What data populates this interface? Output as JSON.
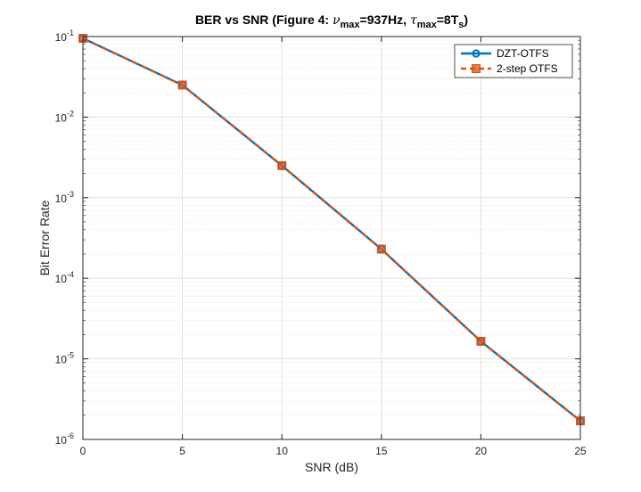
{
  "chart_data": {
    "type": "line",
    "title_parts": {
      "prefix": "BER vs SNR (Figure 4: ",
      "nu_symbol": "ν",
      "nu_sub": "max",
      "nu_value": "=937Hz, ",
      "tau_symbol": "τ",
      "tau_sub": "max",
      "tau_value": "=8T",
      "tau_value_sub": "s",
      "suffix": ")"
    },
    "xlabel": "SNR (dB)",
    "ylabel": "Bit Error Rate",
    "xlim": [
      0,
      25
    ],
    "ylim": [
      1e-06,
      0.1
    ],
    "yscale": "log",
    "grid": true,
    "minor_grid": true,
    "legend_position": "top-right",
    "x_ticks": [
      "0",
      "5",
      "10",
      "15",
      "20",
      "25"
    ],
    "y_tick_base": "10",
    "y_tick_exponents": [
      "-1",
      "-2",
      "-3",
      "-4",
      "-5",
      "-6"
    ],
    "x": [
      0,
      5,
      10,
      15,
      20,
      25
    ],
    "series": [
      {
        "name": "DZT-OTFS",
        "values": [
          0.095,
          0.025,
          0.0025,
          0.00023,
          1.65e-05,
          1.7e-06
        ],
        "color": "#0072BD",
        "line_style": "solid",
        "marker": "circle"
      },
      {
        "name": "2-step OTFS",
        "values": [
          0.095,
          0.025,
          0.0025,
          0.00023,
          1.65e-05,
          1.7e-06
        ],
        "color": "#D95319",
        "line_style": "dashed",
        "marker": "square"
      }
    ]
  }
}
